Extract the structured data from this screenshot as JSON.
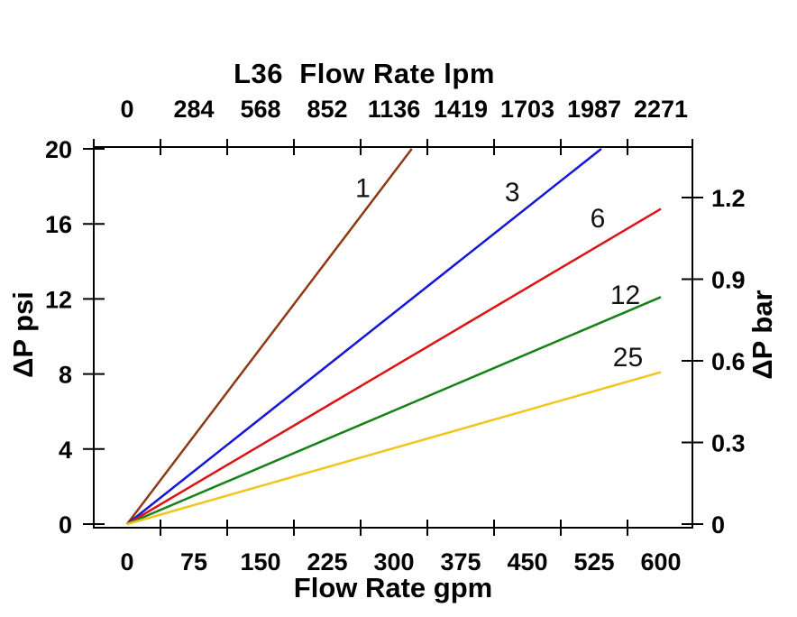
{
  "chart_data": {
    "type": "line",
    "title": "L36  Flow Rate lpm",
    "grid": false,
    "legend": "inline-labels-on-lines",
    "background_color": "#ffffff",
    "axis_color": "#000000",
    "top_axis": {
      "label": "L36  Flow Rate lpm",
      "units": "lpm",
      "tick_labels": [
        "0",
        "284",
        "568",
        "852",
        "1136",
        "1419",
        "1703",
        "1987",
        "2271"
      ]
    },
    "bottom_axis": {
      "label": "Flow Rate gpm",
      "units": "gpm",
      "tick_labels": [
        "0",
        "75",
        "150",
        "225",
        "300",
        "375",
        "450",
        "525",
        "600"
      ],
      "xlim_gpm": [
        0,
        600
      ]
    },
    "left_axis": {
      "label": "ΔP psi",
      "units": "psi",
      "tick_labels": [
        "0",
        "4",
        "8",
        "12",
        "16",
        "20"
      ],
      "ylim_psi": [
        0,
        20
      ]
    },
    "right_axis": {
      "label": "ΔP bar",
      "units": "bar",
      "tick_labels": [
        "0",
        "0.3",
        "0.6",
        "0.9",
        "1.2"
      ],
      "ylim_bar": [
        0,
        1.379
      ],
      "psi_per_bar": 14.5038
    },
    "series": [
      {
        "name": "1",
        "color": "#8B3A12",
        "points_gpm_psi": [
          [
            0,
            0
          ],
          [
            320,
            20
          ]
        ],
        "label_at_gpm_psi": [
          265,
          17.9
        ]
      },
      {
        "name": "3",
        "color": "#1616D8",
        "points_gpm_psi": [
          [
            0,
            0
          ],
          [
            533,
            20
          ]
        ],
        "label_at_gpm_psi": [
          433,
          17.7
        ]
      },
      {
        "name": "6",
        "color": "#DC1414",
        "points_gpm_psi": [
          [
            0,
            0
          ],
          [
            600,
            16.8
          ]
        ],
        "label_at_gpm_psi": [
          529,
          16.3
        ]
      },
      {
        "name": "12",
        "color": "#168116",
        "points_gpm_psi": [
          [
            0,
            0
          ],
          [
            600,
            12.1
          ]
        ],
        "label_at_gpm_psi": [
          560,
          12.2
        ]
      },
      {
        "name": "25",
        "color": "#F2C51E",
        "points_gpm_psi": [
          [
            0,
            0
          ],
          [
            600,
            8.1
          ]
        ],
        "label_at_gpm_psi": [
          563,
          8.9
        ]
      }
    ]
  }
}
